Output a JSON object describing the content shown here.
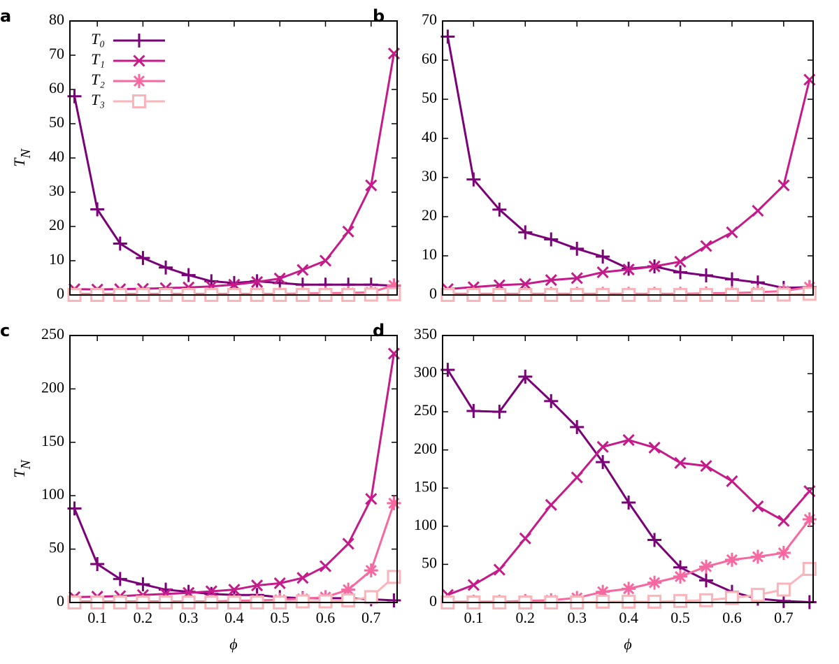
{
  "chart_data": [
    {
      "type": "line",
      "panel": "a",
      "ylabel": {
        "text": "T",
        "subscript": "N"
      },
      "legend": "top-left",
      "x": [
        0.05,
        0.1,
        0.15,
        0.2,
        0.25,
        0.3,
        0.35,
        0.4,
        0.45,
        0.5,
        0.55,
        0.6,
        0.65,
        0.7,
        0.75
      ],
      "xlim": [
        0.04,
        0.757
      ],
      "xticks": [
        0.1,
        0.2,
        0.3,
        0.4,
        0.5,
        0.6,
        0.7
      ],
      "ylim": [
        0,
        80
      ],
      "yticks": [
        0,
        10,
        20,
        30,
        40,
        50,
        60,
        70,
        80
      ],
      "series": [
        {
          "name": "T₀",
          "color": "#7a0177",
          "marker": "plus",
          "values": [
            58,
            25,
            15,
            10.8,
            8,
            5.8,
            4,
            3.5,
            4,
            3.5,
            3,
            3,
            3,
            3,
            2.7
          ]
        },
        {
          "name": "T₁",
          "color": "#c51b8a",
          "marker": "cross",
          "values": [
            1.7,
            1.6,
            1.7,
            1.8,
            2,
            2.2,
            2.5,
            3,
            3.8,
            4.8,
            7.3,
            10,
            18.5,
            32,
            70.5
          ]
        },
        {
          "name": "T₂",
          "color": "#f768a1",
          "marker": "star",
          "values": [
            0.3,
            0.3,
            0.3,
            0.3,
            0.3,
            0.3,
            0.3,
            0.3,
            0.3,
            0.3,
            0.4,
            0.5,
            0.6,
            0.8,
            2.8
          ]
        },
        {
          "name": "T₃",
          "color": "#fbb4b9",
          "marker": "square",
          "values": [
            0,
            0,
            0,
            0,
            0,
            0,
            0,
            0,
            0,
            0,
            0,
            0,
            0,
            0.1,
            0.2
          ]
        }
      ]
    },
    {
      "type": "line",
      "panel": "b",
      "x": [
        0.05,
        0.1,
        0.15,
        0.2,
        0.25,
        0.3,
        0.35,
        0.4,
        0.45,
        0.5,
        0.55,
        0.6,
        0.65,
        0.7,
        0.75
      ],
      "xlim": [
        0.04,
        0.757
      ],
      "xticks": [
        0.1,
        0.2,
        0.3,
        0.4,
        0.5,
        0.6,
        0.7
      ],
      "ylim": [
        0,
        70
      ],
      "yticks": [
        0,
        10,
        20,
        30,
        40,
        50,
        60,
        70
      ],
      "series": [
        {
          "name": "T₀",
          "color": "#7a0177",
          "marker": "plus",
          "values": [
            66,
            29.5,
            21.8,
            16,
            14.2,
            11.8,
            9.8,
            6.7,
            7.3,
            5.8,
            5,
            4,
            3.2,
            1.8,
            2
          ]
        },
        {
          "name": "T₁",
          "color": "#c51b8a",
          "marker": "cross",
          "values": [
            1.5,
            2,
            2.5,
            2.8,
            3.8,
            4.3,
            5.8,
            6.5,
            7.3,
            8.5,
            12.5,
            16,
            21.5,
            28,
            55
          ]
        },
        {
          "name": "T₂",
          "color": "#f768a1",
          "marker": "star",
          "values": [
            0.3,
            0.3,
            0.3,
            0.3,
            0.3,
            0.3,
            0.3,
            0.3,
            0.3,
            0.3,
            0.4,
            0.5,
            0.7,
            1,
            2
          ]
        },
        {
          "name": "T₃",
          "color": "#fbb4b9",
          "marker": "square",
          "values": [
            0,
            0,
            0,
            0,
            0,
            0,
            0,
            0,
            0,
            0,
            0,
            0,
            0,
            0.1,
            0.3
          ]
        }
      ]
    },
    {
      "type": "line",
      "panel": "c",
      "ylabel": {
        "text": "T",
        "subscript": "N"
      },
      "xlabel": "ϕ",
      "x": [
        0.05,
        0.1,
        0.15,
        0.2,
        0.25,
        0.3,
        0.35,
        0.4,
        0.45,
        0.5,
        0.55,
        0.6,
        0.65,
        0.7,
        0.75
      ],
      "xlim": [
        0.04,
        0.757
      ],
      "xticks": [
        0.1,
        0.2,
        0.3,
        0.4,
        0.5,
        0.6,
        0.7
      ],
      "ylim": [
        0,
        250
      ],
      "yticks": [
        0,
        50,
        100,
        150,
        200,
        250
      ],
      "series": [
        {
          "name": "T₀",
          "color": "#7a0177",
          "marker": "plus",
          "values": [
            88,
            36,
            22,
            17,
            12,
            10,
            8,
            7,
            7,
            5,
            4,
            4,
            4,
            3,
            2
          ]
        },
        {
          "name": "T₁",
          "color": "#c51b8a",
          "marker": "cross",
          "values": [
            5,
            5.5,
            6,
            7,
            8,
            9,
            10.5,
            12,
            16,
            18,
            23,
            34,
            55,
            97,
            233
          ]
        },
        {
          "name": "T₂",
          "color": "#f768a1",
          "marker": "star",
          "values": [
            1,
            1,
            1,
            1,
            1,
            1,
            1,
            1.5,
            2,
            2.5,
            3.5,
            5,
            12,
            30,
            93
          ]
        },
        {
          "name": "T₃",
          "color": "#fbb4b9",
          "marker": "square",
          "values": [
            0,
            0,
            0,
            0,
            0,
            0,
            0,
            0,
            0,
            0,
            1,
            1,
            2,
            5,
            24
          ]
        }
      ]
    },
    {
      "type": "line",
      "panel": "d",
      "xlabel": "ϕ",
      "x": [
        0.05,
        0.1,
        0.15,
        0.2,
        0.25,
        0.3,
        0.35,
        0.4,
        0.45,
        0.5,
        0.55,
        0.6,
        0.65,
        0.7,
        0.75
      ],
      "xlim": [
        0.04,
        0.757
      ],
      "xticks": [
        0.1,
        0.2,
        0.3,
        0.4,
        0.5,
        0.6,
        0.7
      ],
      "ylim": [
        0,
        350
      ],
      "yticks": [
        0,
        50,
        100,
        150,
        200,
        250,
        300,
        350
      ],
      "series": [
        {
          "name": "T₀",
          "color": "#7a0177",
          "marker": "plus",
          "values": [
            305,
            251,
            250,
            296,
            264,
            230,
            184,
            131,
            82,
            46,
            29,
            14,
            5,
            2,
            0.5
          ]
        },
        {
          "name": "T₁",
          "color": "#c51b8a",
          "marker": "cross",
          "values": [
            10,
            23,
            43,
            84,
            128,
            164,
            204,
            213,
            203,
            183,
            179,
            159,
            126,
            107,
            146
          ]
        },
        {
          "name": "T₂",
          "color": "#f768a1",
          "marker": "star",
          "values": [
            1,
            1,
            1,
            2,
            3,
            6,
            14,
            18,
            26,
            34,
            47,
            56,
            60,
            65,
            109
          ]
        },
        {
          "name": "T₃",
          "color": "#fbb4b9",
          "marker": "square",
          "values": [
            0,
            0,
            0,
            0,
            0,
            0,
            1,
            1,
            1,
            2,
            3,
            6,
            10,
            17,
            44
          ]
        }
      ]
    }
  ]
}
